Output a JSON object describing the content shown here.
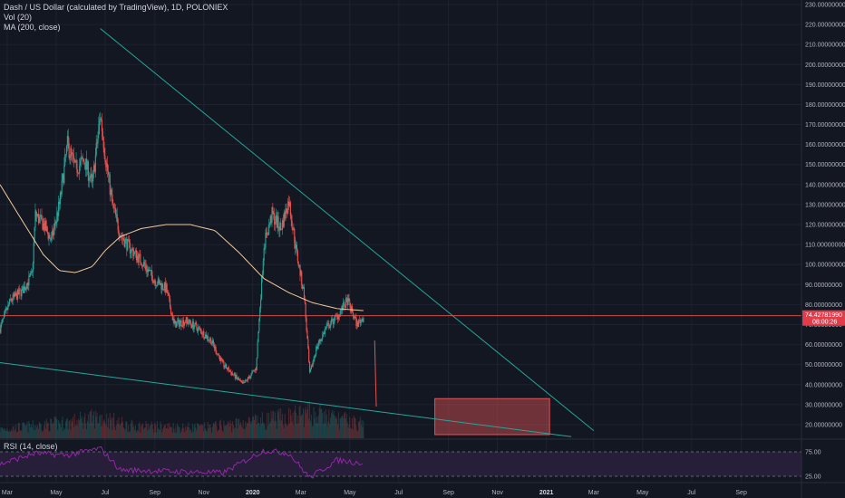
{
  "header": {
    "title": "Dash / US Dollar (calculated by TradingView), 1D, POLONIEX",
    "volume_label": "Vol (20)",
    "ma_label": "MA (200, close)"
  },
  "rsi_panel": {
    "label": "RSI (14, close)",
    "levels": [
      75,
      25
    ],
    "tick_labels": [
      "75.00",
      "25.00"
    ]
  },
  "price_badge": {
    "value": "74.42781990",
    "countdown": "08:00:26",
    "color": "#e23b4a"
  },
  "colors": {
    "background": "#131722",
    "up": "#26a69a",
    "down": "#ef5350",
    "ma_line": "#f0c99a",
    "trend_line": "#26a69a",
    "rsi_line": "#9c27b0",
    "rsi_band": "#2a1f3d",
    "target_box": "#e05555"
  },
  "chart_data": {
    "type": "candlestick",
    "symbol": "Dash / US Dollar",
    "interval": "1D",
    "exchange": "POLONIEX",
    "y_axis": {
      "min": 15,
      "max": 230,
      "ticks": [
        20,
        30,
        40,
        50,
        60,
        70,
        80,
        90,
        100,
        110,
        120,
        130,
        140,
        150,
        160,
        170,
        180,
        190,
        200,
        210,
        220,
        230
      ],
      "tick_labels": [
        "20.00000000",
        "30.00000000",
        "40.00000000",
        "50.00000000",
        "60.00000000",
        "70.00000000",
        "80.00000000",
        "90.00000000",
        "100.00000000",
        "110.00000000",
        "120.00000000",
        "130.00000000",
        "140.00000000",
        "150.00000000",
        "160.00000000",
        "170.00000000",
        "180.00000000",
        "190.00000000",
        "200.00000000",
        "210.00000000",
        "220.00000000",
        "230.00000000"
      ]
    },
    "x_axis": {
      "start": "2019-02-20",
      "end": "2021-11-15",
      "ticks": [
        {
          "date": "2019-03-01",
          "label": "Mar"
        },
        {
          "date": "2019-05-01",
          "label": "May"
        },
        {
          "date": "2019-07-01",
          "label": "Jul"
        },
        {
          "date": "2019-09-01",
          "label": "Sep"
        },
        {
          "date": "2019-11-01",
          "label": "Nov"
        },
        {
          "date": "2020-01-01",
          "label": "2020"
        },
        {
          "date": "2020-03-01",
          "label": "Mar"
        },
        {
          "date": "2020-05-01",
          "label": "May"
        },
        {
          "date": "2020-07-01",
          "label": "Jul"
        },
        {
          "date": "2020-09-01",
          "label": "Sep"
        },
        {
          "date": "2020-11-01",
          "label": "Nov"
        },
        {
          "date": "2021-01-01",
          "label": "2021"
        },
        {
          "date": "2021-03-01",
          "label": "Mar"
        },
        {
          "date": "2021-05-01",
          "label": "May"
        },
        {
          "date": "2021-07-01",
          "label": "Jul"
        },
        {
          "date": "2021-09-01",
          "label": "Sep"
        }
      ]
    },
    "price_path": [
      [
        "2019-02-20",
        68
      ],
      [
        "2019-03-05",
        82
      ],
      [
        "2019-03-20",
        87
      ],
      [
        "2019-04-01",
        95
      ],
      [
        "2019-04-05",
        125
      ],
      [
        "2019-04-15",
        120
      ],
      [
        "2019-04-25",
        112
      ],
      [
        "2019-05-05",
        130
      ],
      [
        "2019-05-15",
        160
      ],
      [
        "2019-05-25",
        148
      ],
      [
        "2019-06-05",
        152
      ],
      [
        "2019-06-15",
        140
      ],
      [
        "2019-06-25",
        175
      ],
      [
        "2019-07-01",
        155
      ],
      [
        "2019-07-10",
        130
      ],
      [
        "2019-07-20",
        115
      ],
      [
        "2019-08-01",
        108
      ],
      [
        "2019-08-15",
        102
      ],
      [
        "2019-09-01",
        92
      ],
      [
        "2019-09-15",
        88
      ],
      [
        "2019-09-25",
        70
      ],
      [
        "2019-10-10",
        72
      ],
      [
        "2019-10-25",
        68
      ],
      [
        "2019-11-10",
        62
      ],
      [
        "2019-11-25",
        50
      ],
      [
        "2019-12-10",
        44
      ],
      [
        "2019-12-20",
        40
      ],
      [
        "2020-01-05",
        48
      ],
      [
        "2020-01-15",
        110
      ],
      [
        "2020-01-25",
        125
      ],
      [
        "2020-02-05",
        118
      ],
      [
        "2020-02-15",
        132
      ],
      [
        "2020-02-25",
        105
      ],
      [
        "2020-03-05",
        85
      ],
      [
        "2020-03-12",
        45
      ],
      [
        "2020-03-20",
        58
      ],
      [
        "2020-04-01",
        68
      ],
      [
        "2020-04-15",
        74
      ],
      [
        "2020-04-28",
        82
      ],
      [
        "2020-05-10",
        70
      ],
      [
        "2020-05-18",
        74
      ]
    ],
    "volume_path": [
      [
        "2019-02-20",
        0.25
      ],
      [
        "2019-05-15",
        0.45
      ],
      [
        "2019-06-25",
        0.6
      ],
      [
        "2019-08-01",
        0.35
      ],
      [
        "2019-11-01",
        0.3
      ],
      [
        "2020-01-15",
        0.5
      ],
      [
        "2020-03-12",
        0.7
      ],
      [
        "2020-05-18",
        0.4
      ]
    ],
    "ma_200": [
      [
        "2019-02-20",
        140
      ],
      [
        "2019-03-15",
        125
      ],
      [
        "2019-04-15",
        105
      ],
      [
        "2019-05-05",
        97
      ],
      [
        "2019-05-25",
        96
      ],
      [
        "2019-06-15",
        99
      ],
      [
        "2019-07-01",
        107
      ],
      [
        "2019-07-20",
        114
      ],
      [
        "2019-08-15",
        118
      ],
      [
        "2019-09-15",
        120
      ],
      [
        "2019-10-15",
        120
      ],
      [
        "2019-11-15",
        117
      ],
      [
        "2019-12-15",
        106
      ],
      [
        "2020-01-15",
        93
      ],
      [
        "2020-02-15",
        86
      ],
      [
        "2020-03-15",
        81
      ],
      [
        "2020-04-15",
        78
      ],
      [
        "2020-05-18",
        77
      ]
    ],
    "rsi_path": [
      [
        "2019-02-20",
        50
      ],
      [
        "2019-04-05",
        72
      ],
      [
        "2019-05-15",
        68
      ],
      [
        "2019-06-25",
        82
      ],
      [
        "2019-07-20",
        38
      ],
      [
        "2019-09-25",
        35
      ],
      [
        "2019-11-25",
        32
      ],
      [
        "2020-01-15",
        78
      ],
      [
        "2020-02-15",
        72
      ],
      [
        "2020-03-12",
        22
      ],
      [
        "2020-04-15",
        58
      ],
      [
        "2020-05-18",
        52
      ]
    ],
    "current_price": 74.43,
    "trendlines": [
      {
        "from": [
          "2019-06-25",
          218
        ],
        "to": [
          "2021-03-01",
          17
        ]
      },
      {
        "from": [
          "2019-02-20",
          51
        ],
        "to": [
          "2021-02-01",
          14
        ]
      }
    ],
    "projection_line": {
      "from": [
        "2020-06-01",
        62
      ],
      "to": [
        "2020-06-03",
        29
      ]
    },
    "target_zone": {
      "x_start": "2020-08-15",
      "x_end": "2021-01-05",
      "y_low": 15,
      "y_high": 33
    }
  }
}
